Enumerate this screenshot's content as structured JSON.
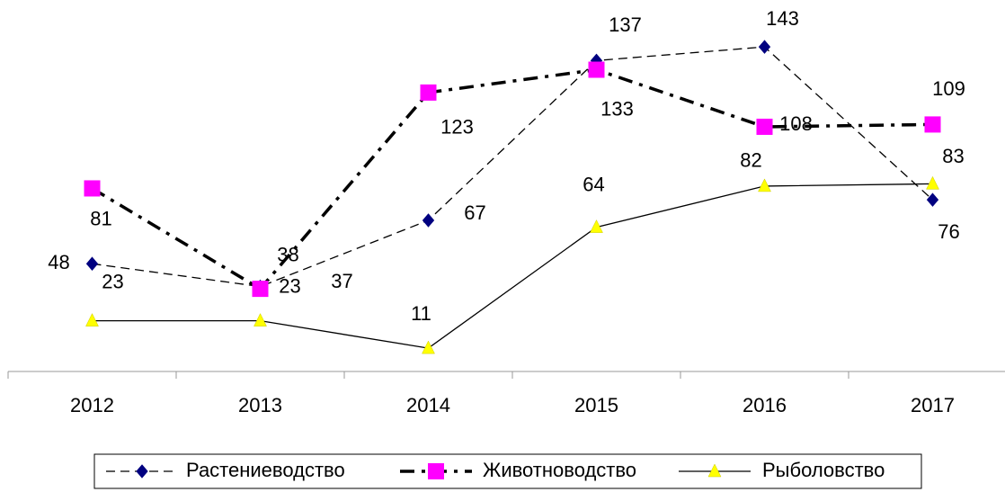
{
  "chart_data": {
    "type": "line",
    "categories": [
      "2012",
      "2013",
      "2014",
      "2015",
      "2016",
      "2017"
    ],
    "ylim": [
      0,
      160
    ],
    "legend": "bottom",
    "series": [
      {
        "name": "Растениеводство",
        "color": "#000080",
        "marker": "diamond",
        "line_style": "dashed",
        "values": [
          48,
          38,
          67,
          137,
          143,
          76
        ]
      },
      {
        "name": "Животноводство",
        "color": "#ff00ff",
        "marker": "square",
        "line_style": "dash-dot",
        "values": [
          81,
          37,
          123,
          133,
          108,
          109
        ]
      },
      {
        "name": "Рыболовство",
        "color": "#ffff00",
        "marker": "triangle",
        "line_style": "solid",
        "values": [
          23,
          23,
          11,
          64,
          82,
          83
        ]
      }
    ]
  }
}
